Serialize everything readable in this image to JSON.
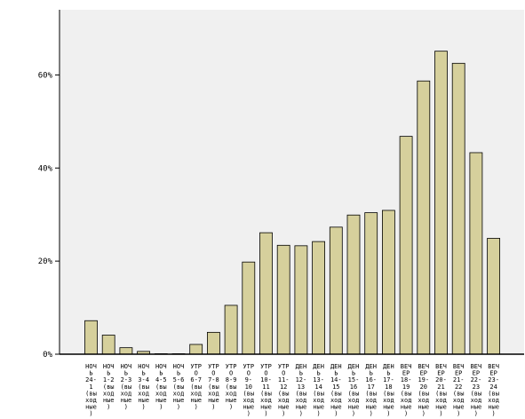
{
  "chart_data": {
    "type": "bar",
    "title": "",
    "xlabel": "",
    "ylabel": "",
    "ylim": [
      0,
      0.74
    ],
    "yticks": [
      0,
      0.2,
      0.4,
      0.6
    ],
    "ytick_labels": [
      "0%",
      "20%",
      "40%",
      "60%"
    ],
    "grid": false,
    "legend": "none",
    "colors": {
      "bar_fill": "#d6d09c",
      "bar_stroke": "#000000",
      "plot_bg": "#f0f0f0",
      "axis": "#000000"
    },
    "categories": [
      "НОЧЬ 24-1 (выходные)",
      "НОЧЬ 1-2 (выходные)",
      "НОЧЬ 2-3 (выходные)",
      "НОЧЬ 3-4 (выходные)",
      "НОЧЬ 4-5 (выходные)",
      "НОЧЬ 5-6 (выходные)",
      "УТРО 6-7 (выходные)",
      "УТРО 7-8 (выходные)",
      "УТРО 8-9 (выходные)",
      "УТРО 9-10 (выходные)",
      "УТРО 10-11 (выходные)",
      "УТРО 11-12 (выходные)",
      "ДЕНЬ 12-13 (выходные)",
      "ДЕНЬ 13-14 (выходные)",
      "ДЕНЬ 14-15 (выходные)",
      "ДЕНЬ 15-16 (выходные)",
      "ДЕНЬ 16-17 (выходные)",
      "ДЕНЬ 17-18 (выходные)",
      "ВЕЧЕР 18-19 (выходные)",
      "ВЕЧЕР 19-20 (выходные)",
      "ВЕЧЕР 20-21 (выходные)",
      "ВЕЧЕР 21-22 (выходные)",
      "ВЕЧЕР 22-23 (выходные)",
      "ВЕЧЕР 23-24 (выходные)"
    ],
    "category_label_lines": [
      [
        "НОЧ",
        "Ь",
        "24-",
        "1",
        "(вы",
        "ход",
        "ные",
        ")"
      ],
      [
        "НОЧ",
        "Ь",
        "1-2",
        "(вы",
        "ход",
        "ные",
        ")"
      ],
      [
        "НОЧ",
        "Ь",
        "2-3",
        "(вы",
        "ход",
        "ные",
        ")"
      ],
      [
        "НОЧ",
        "Ь",
        "3-4",
        "(вы",
        "ход",
        "ные",
        ")"
      ],
      [
        "НОЧ",
        "Ь",
        "4-5",
        "(вы",
        "ход",
        "ные",
        ")"
      ],
      [
        "НОЧ",
        "Ь",
        "5-6",
        "(вы",
        "ход",
        "ные",
        ")"
      ],
      [
        "УТР",
        "О",
        "6-7",
        "(вы",
        "ход",
        "ные",
        ")"
      ],
      [
        "УТР",
        "О",
        "7-8",
        "(вы",
        "ход",
        "ные",
        ")"
      ],
      [
        "УТР",
        "О",
        "8-9",
        "(вы",
        "ход",
        "ные",
        ")"
      ],
      [
        "УТР",
        "О",
        "9-",
        "10",
        "(вы",
        "ход",
        "ные",
        ")"
      ],
      [
        "УТР",
        "О",
        "10-",
        "11",
        "(вы",
        "ход",
        "ные",
        ")"
      ],
      [
        "УТР",
        "О",
        "11-",
        "12",
        "(вы",
        "ход",
        "ные",
        ")"
      ],
      [
        "ДЕН",
        "Ь",
        "12-",
        "13",
        "(вы",
        "ход",
        "ные",
        ")"
      ],
      [
        "ДЕН",
        "Ь",
        "13-",
        "14",
        "(вы",
        "ход",
        "ные",
        ")"
      ],
      [
        "ДЕН",
        "Ь",
        "14-",
        "15",
        "(вы",
        "ход",
        "ные",
        ")"
      ],
      [
        "ДЕН",
        "Ь",
        "15-",
        "16",
        "(вы",
        "ход",
        "ные",
        ")"
      ],
      [
        "ДЕН",
        "Ь",
        "16-",
        "17",
        "(вы",
        "ход",
        "ные",
        ")"
      ],
      [
        "ДЕН",
        "Ь",
        "17-",
        "18",
        "(вы",
        "ход",
        "ные",
        ")"
      ],
      [
        "ВЕЧ",
        "ЕР",
        "18-",
        "19",
        "(вы",
        "ход",
        "ные",
        ")"
      ],
      [
        "ВЕЧ",
        "ЕР",
        "19-",
        "20",
        "(вы",
        "ход",
        "ные",
        ")"
      ],
      [
        "ВЕЧ",
        "ЕР",
        "20-",
        "21",
        "(вы",
        "ход",
        "ные",
        ")"
      ],
      [
        "ВЕЧ",
        "ЕР",
        "21-",
        "22",
        "(вы",
        "ход",
        "ные",
        ")"
      ],
      [
        "ВЕЧ",
        "ЕР",
        "22-",
        "23",
        "(вы",
        "ход",
        "ные",
        ")"
      ],
      [
        "ВЕЧ",
        "ЕР",
        "23-",
        "24",
        "(вы",
        "ход",
        "ные",
        ")"
      ]
    ],
    "values": [
      0.072,
      0.041,
      0.014,
      0.006,
      0.001,
      0.001,
      0.021,
      0.047,
      0.105,
      0.198,
      0.261,
      0.234,
      0.233,
      0.242,
      0.273,
      0.299,
      0.304,
      0.309,
      0.468,
      0.587,
      0.651,
      0.625,
      0.433,
      0.249
    ]
  }
}
